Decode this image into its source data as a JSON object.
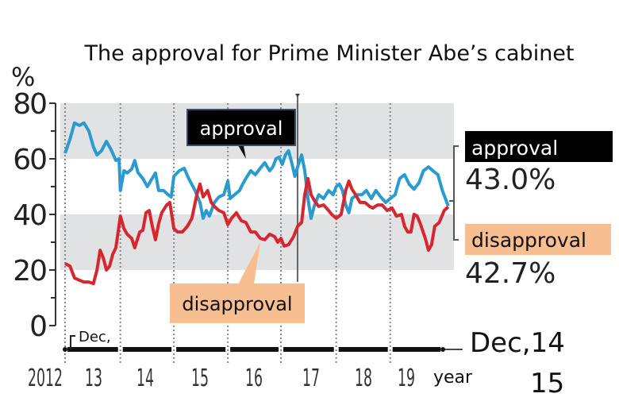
{
  "chart_data": {
    "type": "line",
    "title": "The approval for Prime Minister Abe’s cabinet",
    "ylabel": "%",
    "xlabel": "year",
    "ylim": [
      0,
      80
    ],
    "yticks": [
      "0",
      "20",
      "40",
      "60",
      "80"
    ],
    "x_unit": "months since Dec 2012",
    "xlim": [
      0,
      85
    ],
    "xticks": [
      {
        "label": "2012",
        "month": 0
      },
      {
        "label": "13",
        "month": 6
      },
      {
        "label": "14",
        "month": 18
      },
      {
        "label": "15",
        "month": 30
      },
      {
        "label": "16",
        "month": 42
      },
      {
        "label": "17",
        "month": 54
      },
      {
        "label": "18",
        "month": 66
      },
      {
        "label": "19",
        "month": 78
      }
    ],
    "year_boundaries_months": [
      0,
      12.3,
      24.2,
      36.2,
      48.0,
      60.3,
      72.3
    ],
    "marker_line_month": 51.7,
    "bands": [
      [
        20,
        40
      ],
      [
        60,
        80
      ]
    ],
    "grid": false,
    "start_label": "Dec,",
    "end_label_line1": "Dec,14",
    "end_label_line2": "15",
    "series": [
      {
        "name": "approval",
        "color": "#2a9bd0",
        "points": [
          [
            0.0,
            62.0
          ],
          [
            1.1,
            67.1
          ],
          [
            2.1,
            72.9
          ],
          [
            3.2,
            72.0
          ],
          [
            4.2,
            72.9
          ],
          [
            5.3,
            70.0
          ],
          [
            6.3,
            64.3
          ],
          [
            7.1,
            61.4
          ],
          [
            8.1,
            62.9
          ],
          [
            9.2,
            66.3
          ],
          [
            10.2,
            63.4
          ],
          [
            11.3,
            59.4
          ],
          [
            12.0,
            60.0
          ],
          [
            12.3,
            48.6
          ],
          [
            13.1,
            55.7
          ],
          [
            13.8,
            54.9
          ],
          [
            14.8,
            56.3
          ],
          [
            15.5,
            59.4
          ],
          [
            16.2,
            55.1
          ],
          [
            17.3,
            52.9
          ],
          [
            18.3,
            50.0
          ],
          [
            19.0,
            52.0
          ],
          [
            20.1,
            54.9
          ],
          [
            20.8,
            48.6
          ],
          [
            21.9,
            48.6
          ],
          [
            22.9,
            47.1
          ],
          [
            23.6,
            46.3
          ],
          [
            24.2,
            53.7
          ],
          [
            25.4,
            55.7
          ],
          [
            26.5,
            56.6
          ],
          [
            27.5,
            52.9
          ],
          [
            28.9,
            48.6
          ],
          [
            30.0,
            44.3
          ],
          [
            30.7,
            38.6
          ],
          [
            31.4,
            41.4
          ],
          [
            32.1,
            39.4
          ],
          [
            33.2,
            44.3
          ],
          [
            34.2,
            46.3
          ],
          [
            35.3,
            47.1
          ],
          [
            36.2,
            52.0
          ],
          [
            36.7,
            45.7
          ],
          [
            37.7,
            47.1
          ],
          [
            38.8,
            48.6
          ],
          [
            39.5,
            50.9
          ],
          [
            40.2,
            52.9
          ],
          [
            41.3,
            55.7
          ],
          [
            42.3,
            54.3
          ],
          [
            43.4,
            56.6
          ],
          [
            44.4,
            58.6
          ],
          [
            45.5,
            55.7
          ],
          [
            46.2,
            57.1
          ],
          [
            46.9,
            60.0
          ],
          [
            47.6,
            60.6
          ],
          [
            48.3,
            58.0
          ],
          [
            49.0,
            61.4
          ],
          [
            49.7,
            62.9
          ],
          [
            50.4,
            58.6
          ],
          [
            51.1,
            53.7
          ],
          [
            51.7,
            57.1
          ],
          [
            52.6,
            61.4
          ],
          [
            53.3,
            55.7
          ],
          [
            54.0,
            45.7
          ],
          [
            54.7,
            38.6
          ],
          [
            55.4,
            42.9
          ],
          [
            56.4,
            47.1
          ],
          [
            57.5,
            45.7
          ],
          [
            58.6,
            48.6
          ],
          [
            59.6,
            47.1
          ],
          [
            60.3,
            50.0
          ],
          [
            61.0,
            50.9
          ],
          [
            61.7,
            48.6
          ],
          [
            62.4,
            43.4
          ],
          [
            63.1,
            40.6
          ],
          [
            63.8,
            45.7
          ],
          [
            64.9,
            47.1
          ],
          [
            66.0,
            47.1
          ],
          [
            67.0,
            48.6
          ],
          [
            68.1,
            45.7
          ],
          [
            69.1,
            48.6
          ],
          [
            70.2,
            46.3
          ],
          [
            71.3,
            44.3
          ],
          [
            72.3,
            45.7
          ],
          [
            73.4,
            47.1
          ],
          [
            74.4,
            52.9
          ],
          [
            75.5,
            54.3
          ],
          [
            76.5,
            50.9
          ],
          [
            77.6,
            49.1
          ],
          [
            78.7,
            51.4
          ],
          [
            79.7,
            55.7
          ],
          [
            80.8,
            57.1
          ],
          [
            81.8,
            55.7
          ],
          [
            82.9,
            54.3
          ],
          [
            83.9,
            48.6
          ],
          [
            85.2,
            43.0
          ]
        ]
      },
      {
        "name": "disapproval",
        "color": "#d8262f",
        "points": [
          [
            0.0,
            22.3
          ],
          [
            1.1,
            21.4
          ],
          [
            2.1,
            17.1
          ],
          [
            3.2,
            16.3
          ],
          [
            4.2,
            15.7
          ],
          [
            5.3,
            15.7
          ],
          [
            6.3,
            15.1
          ],
          [
            7.1,
            20.0
          ],
          [
            7.8,
            27.1
          ],
          [
            8.5,
            24.3
          ],
          [
            9.2,
            20.0
          ],
          [
            9.9,
            21.4
          ],
          [
            10.6,
            25.7
          ],
          [
            11.3,
            28.0
          ],
          [
            12.3,
            39.4
          ],
          [
            13.1,
            34.9
          ],
          [
            13.8,
            32.9
          ],
          [
            14.8,
            31.4
          ],
          [
            15.5,
            28.0
          ],
          [
            16.6,
            33.7
          ],
          [
            17.3,
            34.3
          ],
          [
            18.0,
            40.6
          ],
          [
            18.7,
            41.4
          ],
          [
            19.4,
            35.7
          ],
          [
            20.1,
            30.9
          ],
          [
            20.8,
            36.6
          ],
          [
            21.5,
            40.6
          ],
          [
            22.6,
            43.4
          ],
          [
            23.3,
            44.3
          ],
          [
            24.2,
            34.9
          ],
          [
            25.0,
            33.7
          ],
          [
            26.1,
            33.7
          ],
          [
            27.2,
            35.7
          ],
          [
            28.2,
            38.6
          ],
          [
            29.3,
            47.1
          ],
          [
            30.0,
            50.9
          ],
          [
            30.7,
            46.3
          ],
          [
            31.7,
            48.6
          ],
          [
            32.5,
            44.3
          ],
          [
            33.2,
            42.9
          ],
          [
            34.2,
            41.4
          ],
          [
            35.3,
            40.6
          ],
          [
            36.2,
            36.3
          ],
          [
            37.0,
            38.6
          ],
          [
            38.1,
            40.6
          ],
          [
            39.2,
            37.7
          ],
          [
            40.2,
            37.1
          ],
          [
            41.3,
            33.7
          ],
          [
            42.3,
            33.7
          ],
          [
            43.4,
            31.4
          ],
          [
            44.4,
            30.9
          ],
          [
            45.5,
            32.9
          ],
          [
            46.6,
            32.0
          ],
          [
            47.3,
            30.0
          ],
          [
            48.0,
            31.4
          ],
          [
            48.7,
            28.6
          ],
          [
            49.7,
            29.1
          ],
          [
            50.8,
            32.0
          ],
          [
            51.7,
            35.7
          ],
          [
            52.6,
            37.1
          ],
          [
            53.3,
            47.1
          ],
          [
            54.0,
            52.9
          ],
          [
            54.7,
            47.1
          ],
          [
            55.4,
            45.1
          ],
          [
            56.4,
            42.9
          ],
          [
            57.5,
            43.4
          ],
          [
            58.6,
            41.4
          ],
          [
            59.3,
            40.0
          ],
          [
            60.3,
            38.6
          ],
          [
            61.4,
            40.0
          ],
          [
            62.4,
            48.6
          ],
          [
            63.1,
            52.0
          ],
          [
            63.8,
            49.1
          ],
          [
            64.6,
            47.1
          ],
          [
            65.6,
            44.3
          ],
          [
            66.7,
            44.3
          ],
          [
            67.7,
            42.9
          ],
          [
            68.4,
            42.3
          ],
          [
            69.5,
            43.4
          ],
          [
            70.5,
            43.4
          ],
          [
            71.6,
            41.4
          ],
          [
            72.7,
            42.3
          ],
          [
            73.7,
            39.4
          ],
          [
            74.8,
            40.0
          ],
          [
            75.5,
            35.7
          ],
          [
            76.2,
            33.7
          ],
          [
            76.9,
            33.7
          ],
          [
            77.6,
            40.0
          ],
          [
            78.3,
            39.4
          ],
          [
            79.0,
            36.6
          ],
          [
            80.1,
            31.4
          ],
          [
            80.8,
            27.1
          ],
          [
            81.5,
            29.1
          ],
          [
            82.2,
            35.7
          ],
          [
            83.2,
            37.1
          ],
          [
            84.3,
            41.4
          ],
          [
            85.2,
            42.7
          ]
        ]
      }
    ],
    "annotations": {
      "approval_callout": "approval",
      "disapproval_callout": "disapproval",
      "latest_approval_label": "approval",
      "latest_approval_value": "43.0%",
      "latest_disapproval_label": "disapproval",
      "latest_disapproval_value": "42.7%"
    },
    "colors": {
      "band": "#e1e2e4",
      "approval_box": "#000000",
      "disapproval_box": "#f7bf91"
    }
  }
}
